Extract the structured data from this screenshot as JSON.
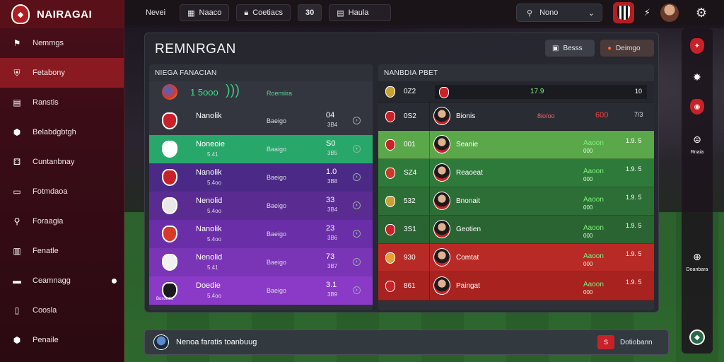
{
  "app": {
    "title": "NAIRAGAI"
  },
  "sidebar": {
    "items": [
      {
        "label": "Nemmgs",
        "icon": "flag-icon",
        "active": false
      },
      {
        "label": "Fetabony",
        "icon": "shield-icon",
        "active": true
      },
      {
        "label": "Ranstis",
        "icon": "document-icon",
        "active": false
      },
      {
        "label": "Belabdgbtgh",
        "icon": "badge-icon",
        "active": false
      },
      {
        "label": "Cuntanbnay",
        "icon": "tactics-icon",
        "active": false
      },
      {
        "label": "Fotmdaoa",
        "icon": "screen-icon",
        "active": false
      },
      {
        "label": "Foraagia",
        "icon": "search-icon",
        "active": false
      },
      {
        "label": "Fenatle",
        "icon": "building-icon",
        "active": false
      },
      {
        "label": "Ceamnagg",
        "icon": "bag-icon",
        "active": false
      },
      {
        "label": "Coosla",
        "icon": "phone-icon",
        "active": false
      },
      {
        "label": "Penaile",
        "icon": "crest-icon",
        "active": false
      }
    ]
  },
  "topbar": {
    "tab1": "Nevei",
    "tab2": "Naaco",
    "tab3": "Coetiacs",
    "tab4_badge": "30",
    "tab5": "Haula",
    "search": "Nono"
  },
  "main": {
    "title": "REMNRGAN",
    "btn1": "Besss",
    "btn2": "Deimgo",
    "left_panel": {
      "title": "NIEGA FANACIAN",
      "top": {
        "value": "1 5ooo",
        "status": "Roemiira"
      },
      "rows": [
        {
          "name": "Nanolik",
          "sub": "",
          "stat": "Baeigo",
          "pts": "04",
          "pts2": "3B4",
          "bg": "dark"
        },
        {
          "name": "Noneoie",
          "sub": "5.41",
          "stat": "Baaigo",
          "pts": "S0",
          "pts2": "3B5",
          "bg": "green"
        },
        {
          "name": "Nanolik",
          "sub": "5.4oo",
          "stat": "Baeigo",
          "pts": "1.0",
          "pts2": "3B8",
          "bg": "purple1"
        },
        {
          "name": "Nenolid",
          "sub": "5.4oo",
          "stat": "Baeigo",
          "pts": "33",
          "pts2": "3B4",
          "bg": "purple2"
        },
        {
          "name": "Nanolik",
          "sub": "5.4oo",
          "stat": "Baeigo",
          "pts": "23",
          "pts2": "3B6",
          "bg": "purple3"
        },
        {
          "name": "Nenolid",
          "sub": "5.41",
          "stat": "Baeigo",
          "pts": "73",
          "pts2": "3B7",
          "bg": "purple4"
        },
        {
          "name": "Doedie",
          "sub": "5.4oo",
          "stat": "Baeigo",
          "pts": "3.1",
          "pts2": "3B9",
          "bg": "purple5",
          "badge": "Bosoeda"
        }
      ]
    },
    "right_panel": {
      "title": "NANBDIA PBET",
      "header": {
        "num": "0Z2",
        "center": "17.9",
        "val": "10"
      },
      "rows": [
        {
          "num": "0S2",
          "name": "Bionis",
          "pos": "",
          "val": "",
          "bg": "dark",
          "extra": "8io/oo",
          "extra_val": "600",
          "extra_val2": "7/3"
        },
        {
          "num": "001",
          "name": "Seanie",
          "pos": "Aaoon",
          "pos2": "000",
          "val": "1.9. 5",
          "bg": "lgreen"
        },
        {
          "num": "SZ4",
          "name": "Reaoeat",
          "pos": "Aaoon",
          "pos2": "000",
          "val": "1.9. 5",
          "bg": "green"
        },
        {
          "num": "532",
          "name": "Bnonait",
          "pos": "Aaoon",
          "pos2": "000",
          "val": "1.9. 5",
          "bg": "green2"
        },
        {
          "num": "3S1",
          "name": "Geotien",
          "pos": "Aaoon",
          "pos2": "000",
          "val": "1.9. 5",
          "bg": "green3"
        },
        {
          "num": "930",
          "name": "Comtat",
          "pos": "Aaoon",
          "pos2": "000",
          "val": "1.9. 5",
          "bg": "red"
        },
        {
          "num": "861",
          "name": "Paingat",
          "pos": "Aaoon",
          "pos2": "000",
          "val": "1.9. 5",
          "bg": "red2"
        }
      ]
    }
  },
  "bottombar": {
    "message": "Nenoa faratis toanbuug",
    "badge": "S",
    "right": "Dotiobann"
  },
  "rail": {
    "item3": "Rnaia",
    "item5": "Doanbara"
  }
}
